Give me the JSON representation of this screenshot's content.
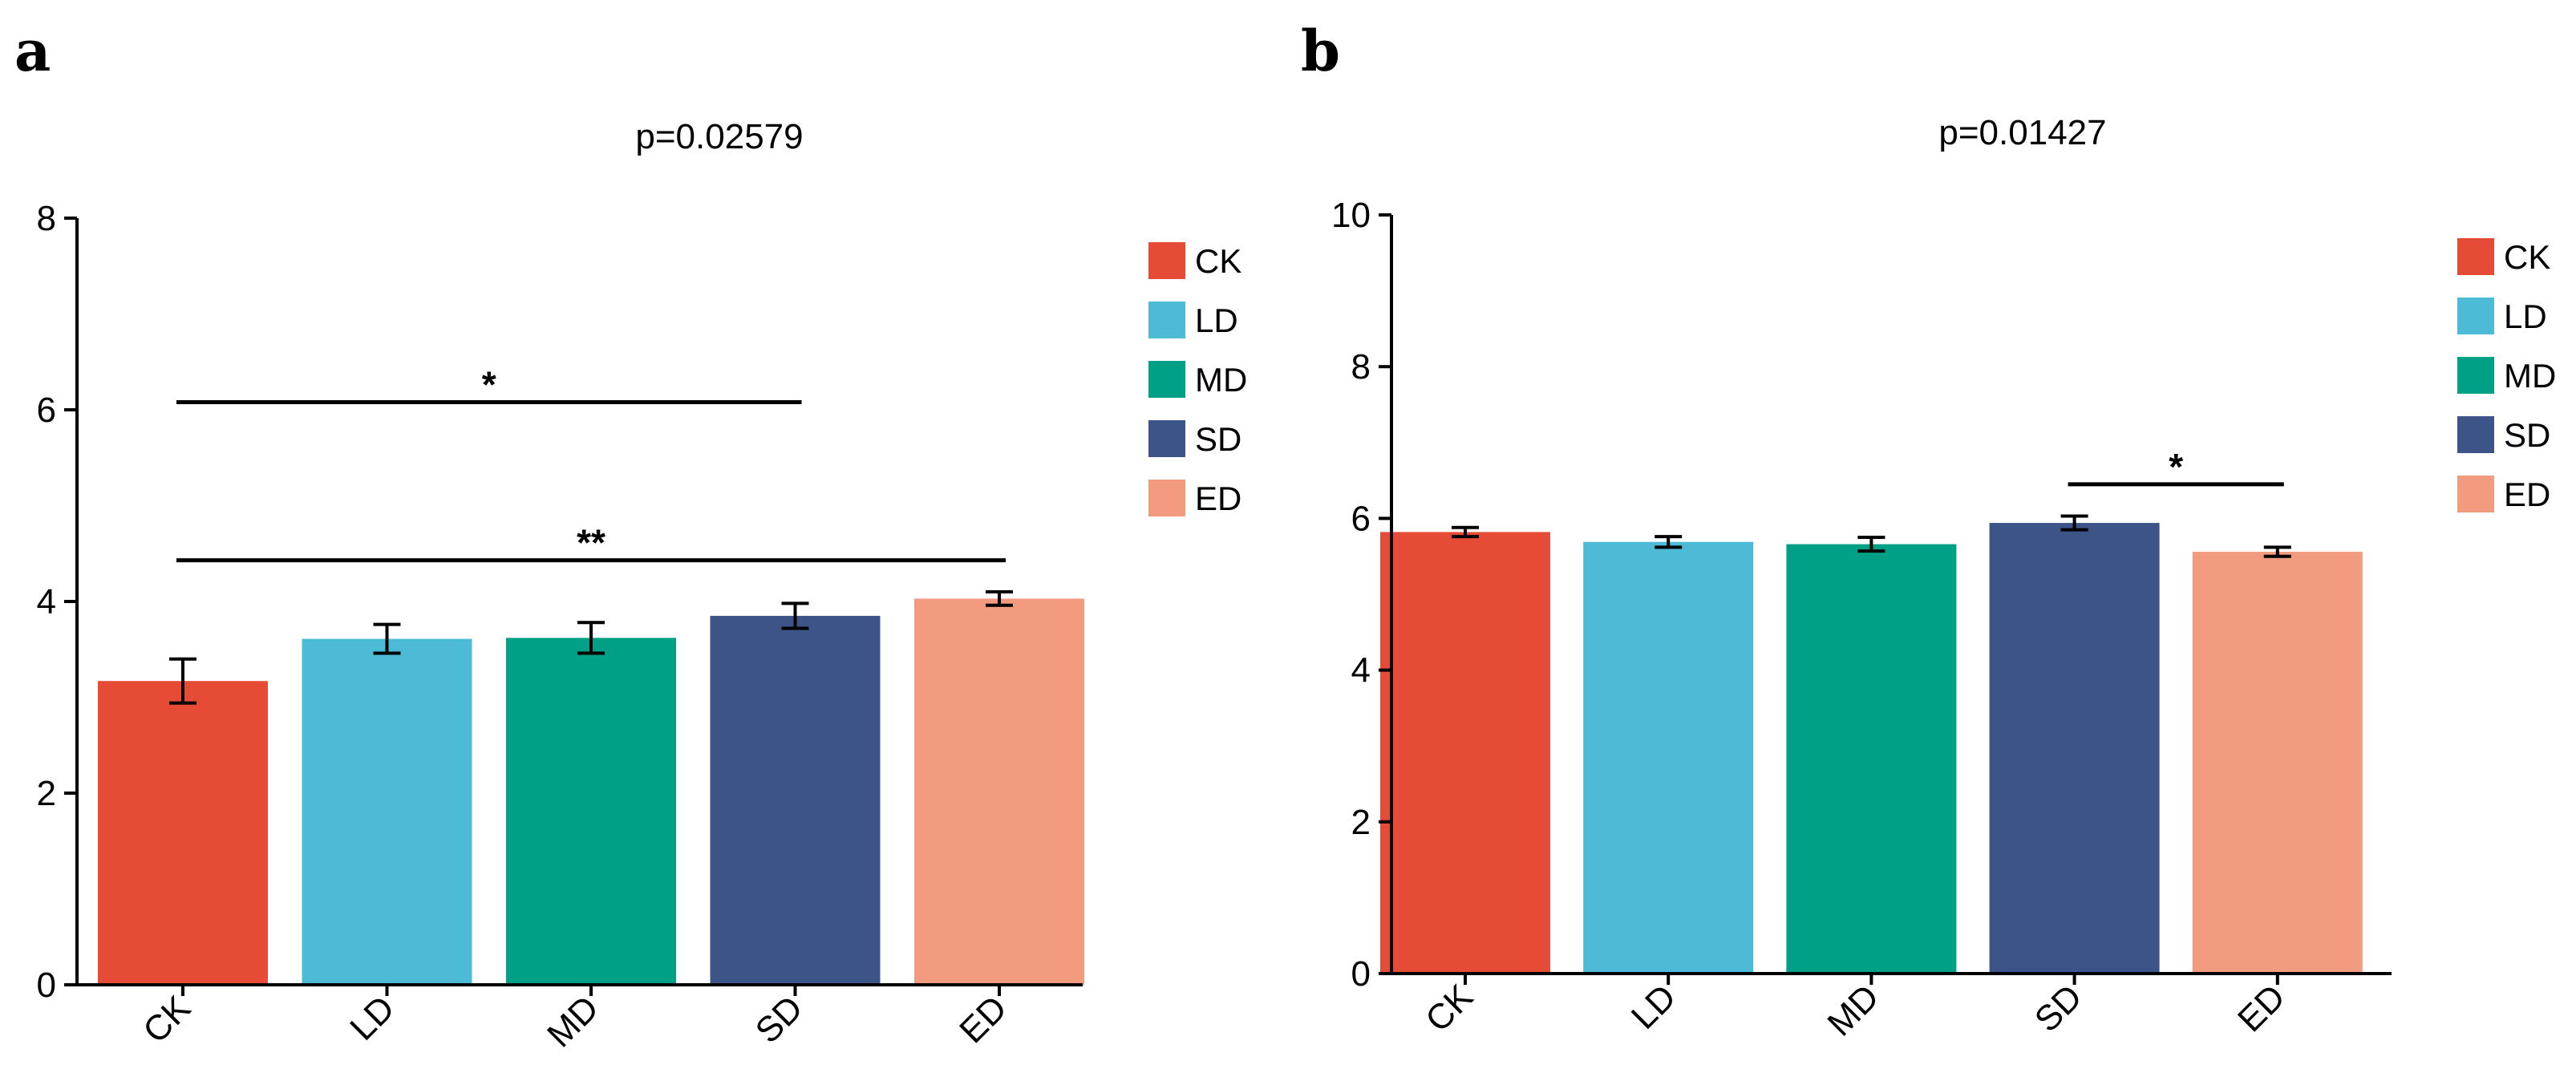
{
  "panels": {
    "a": {
      "letter": "a"
    },
    "b": {
      "letter": "b"
    }
  },
  "chart_data": [
    {
      "type": "bar",
      "panel": "a",
      "title": "p=0.02579",
      "categories": [
        "CK",
        "LD",
        "MD",
        "SD",
        "ED"
      ],
      "values": [
        3.17,
        3.61,
        3.62,
        3.85,
        4.03
      ],
      "errors": [
        0.23,
        0.15,
        0.16,
        0.13,
        0.07
      ],
      "colors": [
        "#E64B35",
        "#4DBBD5",
        "#00A087",
        "#3C5488",
        "#F39B7F"
      ],
      "ylim": [
        0,
        8
      ],
      "yticks": [
        "0",
        "2",
        "4",
        "6",
        "8"
      ],
      "xlabel": "",
      "ylabel": "",
      "legend": [
        "CK",
        "LD",
        "MD",
        "SD",
        "ED"
      ],
      "legend_position": "right",
      "annotations": [
        {
          "from": "CK",
          "to": "SD",
          "y": 6.08,
          "label": "*"
        },
        {
          "from": "CK",
          "to": "ED",
          "y": 4.43,
          "label": "**"
        }
      ]
    },
    {
      "type": "bar",
      "panel": "b",
      "title": "p=0.01427",
      "categories": [
        "CK",
        "LD",
        "MD",
        "SD",
        "ED"
      ],
      "values": [
        5.82,
        5.69,
        5.66,
        5.94,
        5.56
      ],
      "errors": [
        0.06,
        0.07,
        0.09,
        0.09,
        0.06
      ],
      "colors": [
        "#E64B35",
        "#4DBBD5",
        "#00A087",
        "#3C5488",
        "#F39B7F"
      ],
      "ylim": [
        0,
        10
      ],
      "yticks": [
        "0",
        "2",
        "4",
        "6",
        "8",
        "10"
      ],
      "xlabel": "",
      "ylabel": "",
      "legend": [
        "CK",
        "LD",
        "MD",
        "SD",
        "ED"
      ],
      "legend_position": "right",
      "annotations": [
        {
          "from": "SD",
          "to": "ED",
          "y": 6.45,
          "label": "*"
        }
      ]
    }
  ]
}
